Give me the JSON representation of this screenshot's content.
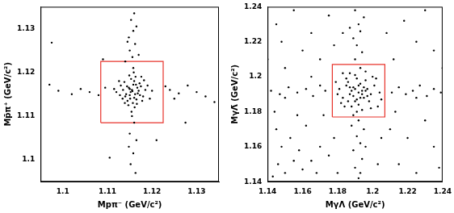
{
  "chart_data": [
    {
      "type": "scatter",
      "x_label": "Mpπ⁻ (GeV/c²)",
      "y_label": "Mp̄π⁺ (GeV/c²)",
      "xlim": [
        1.095,
        1.135
      ],
      "ylim": [
        1.095,
        1.135
      ],
      "xticks": [
        1.1,
        1.11,
        1.12,
        1.13
      ],
      "yticks": [
        1.1,
        1.11,
        1.12,
        1.13
      ],
      "grid": false,
      "color": "#000000",
      "marker": "circle",
      "region": {
        "x": [
          1.1085,
          1.1225
        ],
        "y": [
          1.1085,
          1.1225
        ],
        "color": "#e8332b"
      },
      "x": [
        1.1155,
        1.1162,
        1.1148,
        1.117,
        1.114,
        1.1158,
        1.1165,
        1.1152,
        1.1175,
        1.1135,
        1.116,
        1.1145,
        1.1168,
        1.115,
        1.118,
        1.113,
        1.1157,
        1.1163,
        1.1142,
        1.1172,
        1.115,
        1.1185,
        1.1128,
        1.116,
        1.1153,
        1.1167,
        1.1138,
        1.1178,
        1.1147,
        1.119,
        1.112,
        1.1159,
        1.1161,
        1.1144,
        1.1173,
        1.1156,
        1.1134,
        1.1182,
        1.1149,
        1.1166,
        1.12,
        1.1115,
        1.1151,
        1.1164,
        1.1139,
        1.1176,
        1.1126,
        1.1195,
        1.1154,
        1.1158,
        1.1156,
        1.115,
        1.1162,
        1.1148,
        1.1158,
        1.1165,
        1.1153,
        1.116,
        1.1145,
        1.1155,
        1.116,
        1.115,
        1.1165,
        1.1148,
        1.1158,
        1.1152,
        1.1163,
        1.117,
        1.114,
        1.099,
        1.102,
        1.104,
        1.106,
        1.108,
        1.1095,
        1.124,
        1.126,
        1.128,
        1.13,
        1.132,
        1.134,
        1.125,
        1.097,
        1.123,
        1.0975,
        1.121,
        1.109,
        1.1275,
        1.1105
      ],
      "values": [
        1.116,
        1.115,
        1.1165,
        1.1158,
        1.1145,
        1.1172,
        1.1138,
        1.1155,
        1.1168,
        1.116,
        1.118,
        1.1135,
        1.1152,
        1.1148,
        1.1145,
        1.117,
        1.113,
        1.119,
        1.115,
        1.1175,
        1.1162,
        1.116,
        1.1148,
        1.1142,
        1.1185,
        1.1165,
        1.1178,
        1.1135,
        1.1125,
        1.117,
        1.1155,
        1.12,
        1.112,
        1.1168,
        1.1148,
        1.1157,
        1.114,
        1.1182,
        1.1193,
        1.1128,
        1.1158,
        1.1162,
        1.114,
        1.1172,
        1.113,
        1.119,
        1.118,
        1.114,
        1.111,
        1.121,
        1.1235,
        1.125,
        1.1265,
        1.128,
        1.1295,
        1.1305,
        1.132,
        1.1335,
        1.127,
        1.11,
        1.1085,
        1.106,
        1.1045,
        1.103,
        1.1015,
        1.099,
        1.097,
        1.124,
        1.1225,
        1.1158,
        1.115,
        1.1162,
        1.1155,
        1.1148,
        1.1165,
        1.116,
        1.1152,
        1.117,
        1.1155,
        1.1145,
        1.1132,
        1.114,
        1.1172,
        1.1168,
        1.1268,
        1.1045,
        1.123,
        1.1085,
        1.1005
      ]
    },
    {
      "type": "scatter",
      "x_label": "MγΛ (GeV/c²)",
      "y_label": "MγΛ̄ (GeV/c²)",
      "xlim": [
        1.14,
        1.24
      ],
      "ylim": [
        1.14,
        1.24
      ],
      "xticks": [
        1.14,
        1.16,
        1.18,
        1.2,
        1.22,
        1.24
      ],
      "yticks": [
        1.14,
        1.16,
        1.18,
        1.2,
        1.22,
        1.24
      ],
      "grid": false,
      "color": "#000000",
      "marker": "circle",
      "region": {
        "x": [
          1.177,
          1.207
        ],
        "y": [
          1.177,
          1.207
        ],
        "color": "#e8332b"
      },
      "x": [
        1.192,
        1.189,
        1.195,
        1.187,
        1.193,
        1.19,
        1.197,
        1.185,
        1.194,
        1.191,
        1.188,
        1.199,
        1.183,
        1.196,
        1.192,
        1.186,
        1.201,
        1.189,
        1.194,
        1.181,
        1.198,
        1.19,
        1.195,
        1.184,
        1.202,
        1.187,
        1.193,
        1.18,
        1.196,
        1.191,
        1.204,
        1.188,
        1.199,
        1.185,
        1.192,
        1.182,
        1.197,
        1.19,
        1.205,
        1.186,
        1.193,
        1.179,
        1.2,
        1.189,
        1.194,
        1.183,
        1.203,
        1.191,
        1.196,
        1.187,
        1.192,
        1.19,
        1.194,
        1.189,
        1.193,
        1.191,
        1.195,
        1.188,
        1.192,
        1.19,
        1.194,
        1.191,
        1.189,
        1.193,
        1.192,
        1.195,
        1.19,
        1.193,
        1.196,
        1.187,
        1.142,
        1.147,
        1.152,
        1.157,
        1.162,
        1.166,
        1.17,
        1.173,
        1.211,
        1.215,
        1.219,
        1.223,
        1.227,
        1.231,
        1.235,
        1.239,
        1.15,
        1.225,
        1.143,
        1.146,
        1.15,
        1.155,
        1.148,
        1.16,
        1.153,
        1.158,
        1.165,
        1.145,
        1.162,
        1.17,
        1.168,
        1.175,
        1.144,
        1.157,
        1.172,
        1.178,
        1.15,
        1.16,
        1.145,
        1.165,
        1.155,
        1.17,
        1.148,
        1.175,
        1.215,
        1.225,
        1.235,
        1.21,
        1.23,
        1.22,
        1.238,
        1.212,
        1.225,
        1.235,
        1.218,
        1.23,
        1.208,
        1.24,
        1.183,
        1.203,
        1.18,
        1.205,
        1.178,
        1.213,
        1.165,
        1.14
      ],
      "values": [
        1.191,
        1.194,
        1.188,
        1.19,
        1.196,
        1.186,
        1.193,
        1.195,
        1.192,
        1.199,
        1.183,
        1.19,
        1.188,
        1.198,
        1.184,
        1.197,
        1.195,
        1.189,
        1.181,
        1.193,
        1.186,
        1.201,
        1.194,
        1.183,
        1.199,
        1.202,
        1.188,
        1.19,
        1.203,
        1.18,
        1.191,
        1.192,
        1.182,
        1.199,
        1.195,
        1.185,
        1.189,
        1.193,
        1.187,
        1.186,
        1.205,
        1.197,
        1.2,
        1.178,
        1.19,
        1.202,
        1.183,
        1.187,
        1.192,
        1.194,
        1.142,
        1.148,
        1.153,
        1.158,
        1.162,
        1.166,
        1.17,
        1.172,
        1.175,
        1.21,
        1.214,
        1.218,
        1.222,
        1.226,
        1.23,
        1.234,
        1.238,
        1.145,
        1.16,
        1.228,
        1.192,
        1.19,
        1.194,
        1.191,
        1.193,
        1.189,
        1.195,
        1.192,
        1.191,
        1.194,
        1.19,
        1.192,
        1.195,
        1.189,
        1.193,
        1.191,
        1.188,
        1.188,
        1.143,
        1.15,
        1.145,
        1.152,
        1.16,
        1.147,
        1.165,
        1.158,
        1.152,
        1.17,
        1.172,
        1.16,
        1.145,
        1.155,
        1.18,
        1.178,
        1.178,
        1.165,
        1.205,
        1.215,
        1.23,
        1.225,
        1.238,
        1.21,
        1.22,
        1.235,
        1.15,
        1.145,
        1.16,
        1.17,
        1.175,
        1.165,
        1.148,
        1.21,
        1.22,
        1.215,
        1.232,
        1.238,
        1.225,
        1.205,
        1.225,
        1.15,
        1.145,
        1.165,
        1.218,
        1.18,
        1.2,
        1.21
      ]
    }
  ]
}
